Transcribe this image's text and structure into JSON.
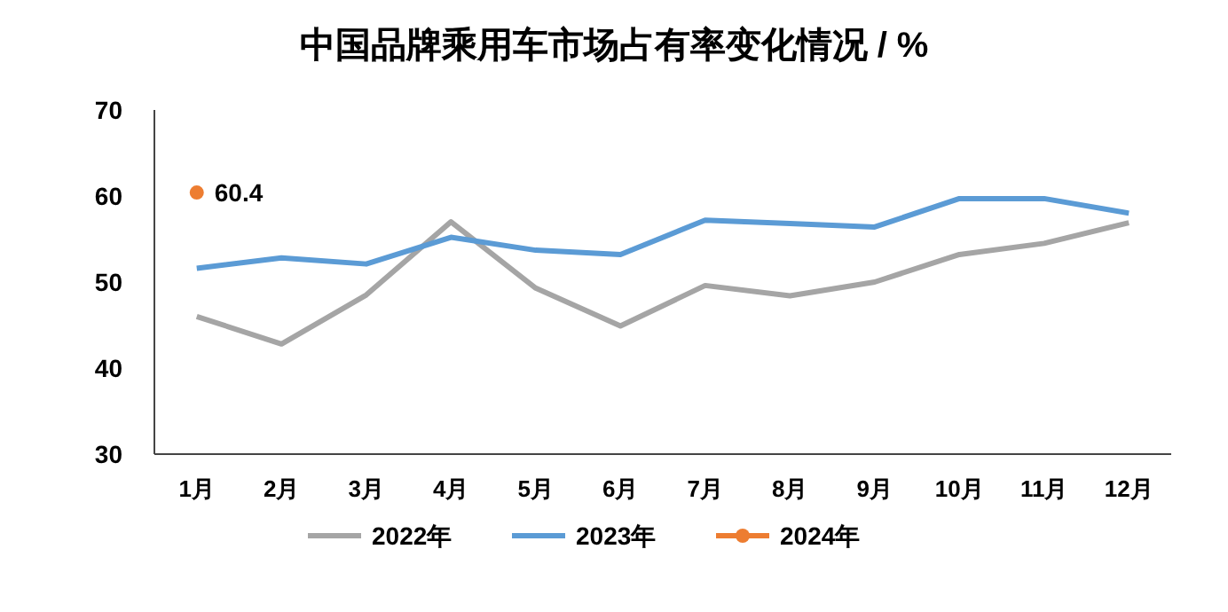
{
  "chart_data": {
    "type": "line",
    "title": "中国品牌乘用车市场占有率变化情况 / %",
    "categories": [
      "1月",
      "2月",
      "3月",
      "4月",
      "5月",
      "6月",
      "7月",
      "8月",
      "9月",
      "10月",
      "11月",
      "12月"
    ],
    "ylim": [
      30,
      70
    ],
    "yticks": [
      30,
      40,
      50,
      60,
      70
    ],
    "grid": false,
    "legend": "bottom",
    "series": [
      {
        "name": "2022年",
        "color": "#a5a5a5",
        "values": [
          46,
          42.8,
          48.5,
          57,
          49.3,
          44.9,
          49.6,
          48.4,
          50,
          53.2,
          54.5,
          56.9
        ]
      },
      {
        "name": "2023年",
        "color": "#5b9bd5",
        "values": [
          51.6,
          52.8,
          52.1,
          55.2,
          53.7,
          53.2,
          57.2,
          56.8,
          56.4,
          59.7,
          59.7,
          58
        ]
      },
      {
        "name": "2024年",
        "color": "#ed7d31",
        "marker": "circle",
        "values": [
          60.4,
          null,
          null,
          null,
          null,
          null,
          null,
          null,
          null,
          null,
          null,
          null
        ],
        "value_labels": [
          "60.4",
          null,
          null,
          null,
          null,
          null,
          null,
          null,
          null,
          null,
          null,
          null
        ]
      }
    ]
  }
}
